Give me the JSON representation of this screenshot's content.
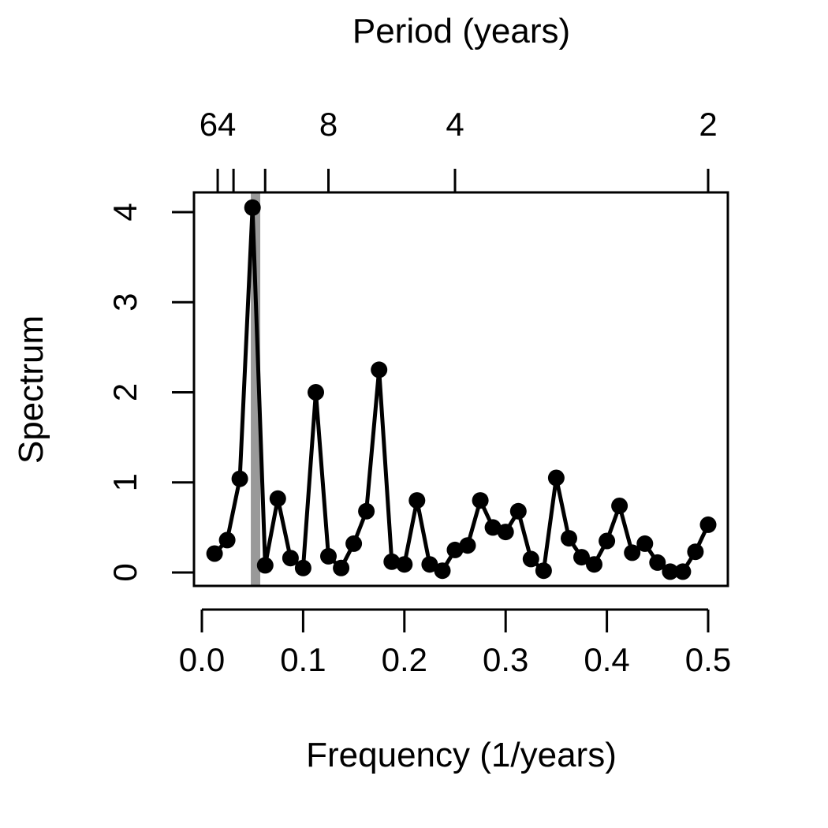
{
  "chart_data": {
    "type": "line",
    "title": "",
    "xlabel": "Frequency (1/years)",
    "ylabel": "Spectrum",
    "top_axis_label": "Period (years)",
    "xlim": [
      0.0,
      0.52
    ],
    "ylim": [
      0,
      4.2
    ],
    "x_ticks": [
      0.0,
      0.1,
      0.2,
      0.3,
      0.4,
      0.5
    ],
    "x_tick_labels": [
      "0.0",
      "0.1",
      "0.2",
      "0.3",
      "0.4",
      "0.5"
    ],
    "y_ticks": [
      0,
      1,
      2,
      3,
      4
    ],
    "y_tick_labels": [
      "0",
      "1",
      "2",
      "3",
      "4"
    ],
    "top_ticks": [
      {
        "period": 64,
        "label": "64"
      },
      {
        "period": 32,
        "label": ""
      },
      {
        "period": 16,
        "label": ""
      },
      {
        "period": 8,
        "label": "8"
      },
      {
        "period": 4,
        "label": "4"
      },
      {
        "period": 2,
        "label": "2"
      }
    ],
    "highlight_band": {
      "x": 0.053,
      "color": "#999999"
    },
    "line_color": "#000000",
    "grid": false,
    "series": [
      {
        "x": [
          0.0125,
          0.025,
          0.0375,
          0.05,
          0.0625,
          0.075,
          0.0875,
          0.1,
          0.1125,
          0.125,
          0.1375,
          0.15,
          0.1625,
          0.175,
          0.1875,
          0.2,
          0.2125,
          0.225,
          0.2375,
          0.25,
          0.2625,
          0.275,
          0.2875,
          0.3,
          0.3125,
          0.325,
          0.3375,
          0.35,
          0.3625,
          0.375,
          0.3875,
          0.4,
          0.4125,
          0.425,
          0.4375,
          0.45,
          0.4625,
          0.475,
          0.4875,
          0.5
        ],
        "y": [
          0.21,
          0.36,
          1.04,
          4.05,
          0.08,
          0.82,
          0.16,
          0.05,
          2.0,
          0.18,
          0.05,
          0.32,
          0.68,
          2.25,
          0.12,
          0.09,
          0.8,
          0.09,
          0.02,
          0.25,
          0.3,
          0.8,
          0.5,
          0.45,
          0.68,
          0.15,
          0.02,
          1.05,
          0.38,
          0.17,
          0.09,
          0.35,
          0.74,
          0.22,
          0.32,
          0.11,
          0.01,
          0.01,
          0.23,
          0.53
        ]
      }
    ]
  }
}
